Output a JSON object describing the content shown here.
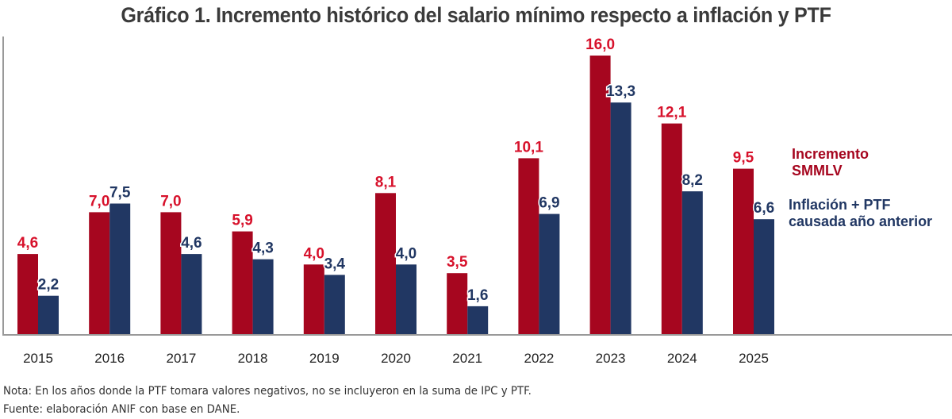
{
  "colors": {
    "smmlv": "#A6061F",
    "smmlv_label": "#D7112B",
    "inflation": "#213763",
    "inflation_label": "#213763",
    "axis": "#999999",
    "title": "#3a3a3a"
  },
  "chart_data": {
    "type": "bar",
    "title": "Gráfico 1. Incremento histórico del salario mínimo respecto a inflación y PTF",
    "xlabel": "",
    "ylabel": "",
    "ylim": [
      0,
      17
    ],
    "grid": false,
    "legend_position": "right",
    "categories": [
      "2015",
      "2016",
      "2017",
      "2018",
      "2019",
      "2020",
      "2021",
      "2022",
      "2023",
      "2024",
      "2025"
    ],
    "series": [
      {
        "name": "Incremento SMMLV",
        "legend_lines": [
          "Incremento",
          "SMMLV"
        ],
        "values": [
          4.6,
          7.0,
          7.0,
          5.9,
          4.0,
          8.1,
          3.5,
          10.1,
          16.0,
          12.1,
          9.5
        ],
        "labels": [
          "4,6",
          "7,0",
          "7,0",
          "5,9",
          "4,0",
          "8,1",
          "3,5",
          "10,1",
          "16,0",
          "12,1",
          "9,5"
        ]
      },
      {
        "name": "Inflación + PTF causada año anterior",
        "legend_lines": [
          "Inflación + PTF",
          "causada año anterior"
        ],
        "values": [
          2.2,
          7.5,
          4.6,
          4.3,
          3.4,
          4.0,
          1.6,
          6.9,
          13.3,
          8.2,
          6.6
        ],
        "labels": [
          "2,2",
          "7,5",
          "4,6",
          "4,3",
          "3,4",
          "4,0",
          "1,6",
          "6,9",
          "13,3",
          "8,2",
          "6,6"
        ]
      }
    ]
  },
  "footer": {
    "note": "Nota:  En los años donde la PTF tomara valores negativos, no se incluyeron en la suma de IPC y PTF.",
    "source": "Fuente: elaboración ANIF con base en DANE."
  }
}
